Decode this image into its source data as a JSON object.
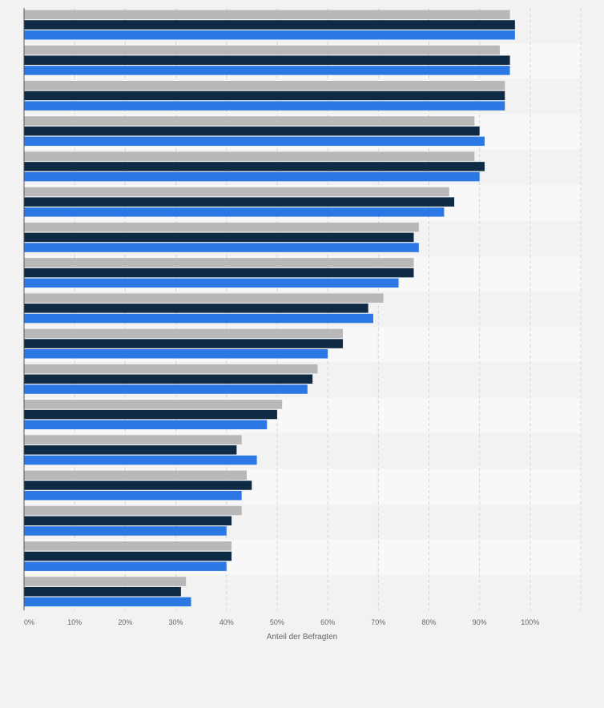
{
  "chart_data": {
    "type": "bar",
    "orientation": "horizontal",
    "xlabel": "Anteil der Befragten",
    "xlim": [
      0,
      110
    ],
    "xticks": [
      0,
      10,
      20,
      30,
      40,
      50,
      60,
      70,
      80,
      90,
      100
    ],
    "xtick_labels": [
      "0%",
      "10%",
      "20%",
      "30%",
      "40%",
      "50%",
      "60%",
      "70%",
      "80%",
      "90%",
      "100%"
    ],
    "grid": true,
    "legend": "none",
    "series": [
      {
        "color": "#b8b8b8",
        "values": [
          96,
          94,
          95,
          89,
          89,
          84,
          78,
          77,
          71,
          63,
          58,
          51,
          43,
          44,
          43,
          41,
          32
        ]
      },
      {
        "color": "#0f2a44",
        "values": [
          97,
          96,
          95,
          90,
          91,
          85,
          77,
          77,
          68,
          63,
          57,
          50,
          42,
          45,
          41,
          41,
          31
        ]
      },
      {
        "color": "#2b78e4",
        "values": [
          97,
          96,
          95,
          91,
          90,
          83,
          78,
          74,
          69,
          60,
          56,
          48,
          46,
          43,
          40,
          40,
          33
        ]
      }
    ]
  }
}
